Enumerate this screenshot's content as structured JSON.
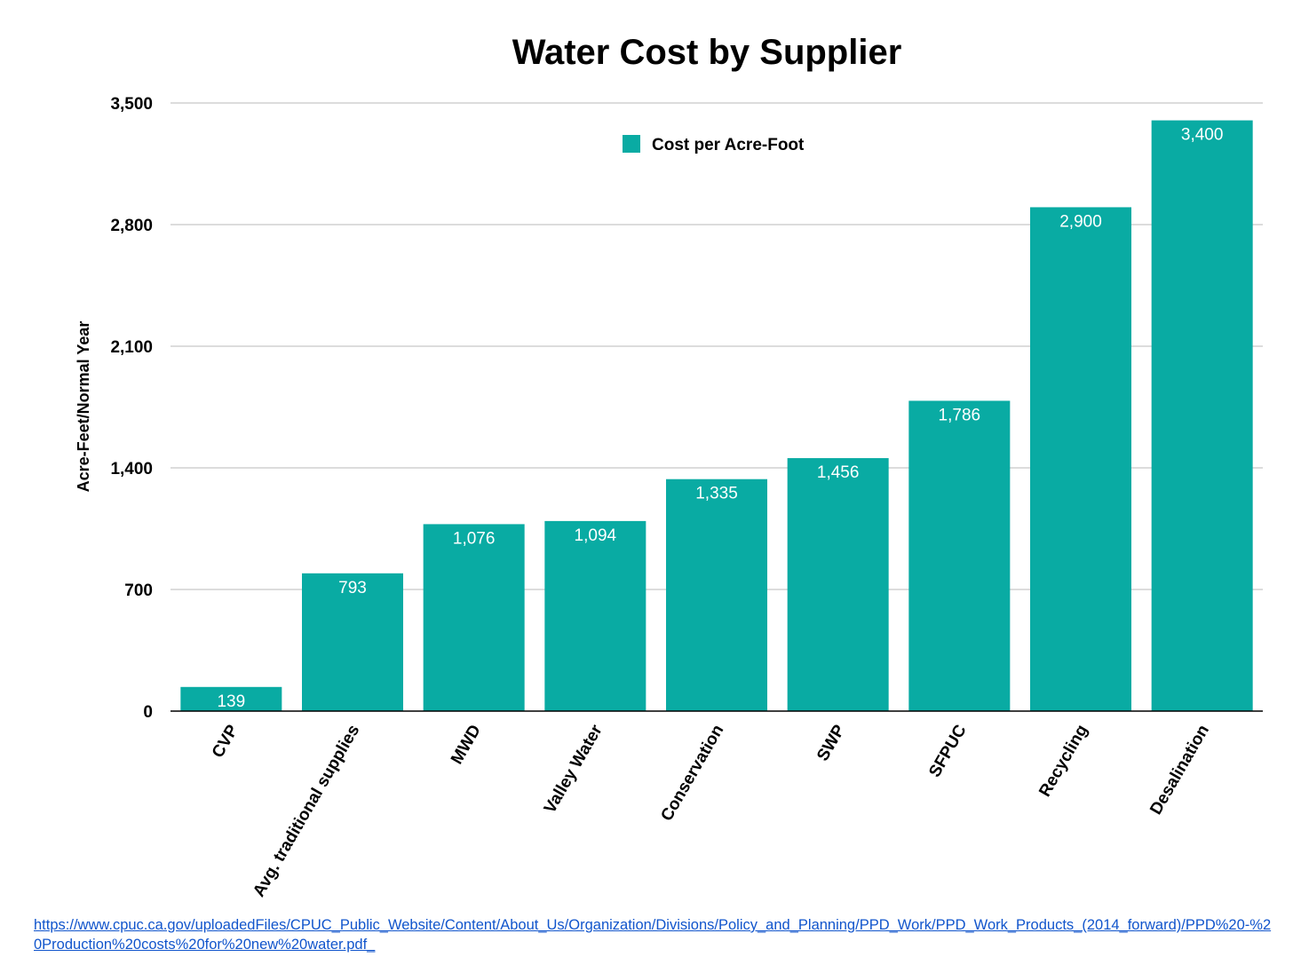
{
  "chart_data": {
    "type": "bar",
    "title": "Water Cost by Supplier",
    "xlabel": "",
    "ylabel": "Acre-Feet/Normal Year",
    "ylim": [
      0,
      3500
    ],
    "yticks": [
      0,
      700,
      1400,
      2100,
      2800,
      3500
    ],
    "ytick_labels": [
      "0",
      "700",
      "1,400",
      "2,100",
      "2,800",
      "3,500"
    ],
    "categories": [
      "CVP",
      "Avg. traditional supplies",
      "MWD",
      "Valley Water",
      "Conservation",
      "SWP",
      "SFPUC",
      "Recycling",
      "Desalination"
    ],
    "series": [
      {
        "name": "Cost per Acre-Foot",
        "color": "#09aba3",
        "values": [
          139,
          793,
          1076,
          1094,
          1335,
          1456,
          1786,
          2900,
          3400
        ],
        "labels": [
          "139",
          "793",
          "1,076",
          "1,094",
          "1,335",
          "1,456",
          "1,786",
          "2,900",
          "3,400"
        ]
      }
    ],
    "legend": "top-center",
    "grid": true
  },
  "source": {
    "text": "https://www.cpuc.ca.gov/uploadedFiles/CPUC_Public_Website/Content/About_Us/Organization/Divisions/Policy_and_Planning/PPD_Work/PPD_Work_Products_(2014_forward)/PPD%20-%20Production%20costs%20for%20new%20water.pdf_"
  }
}
